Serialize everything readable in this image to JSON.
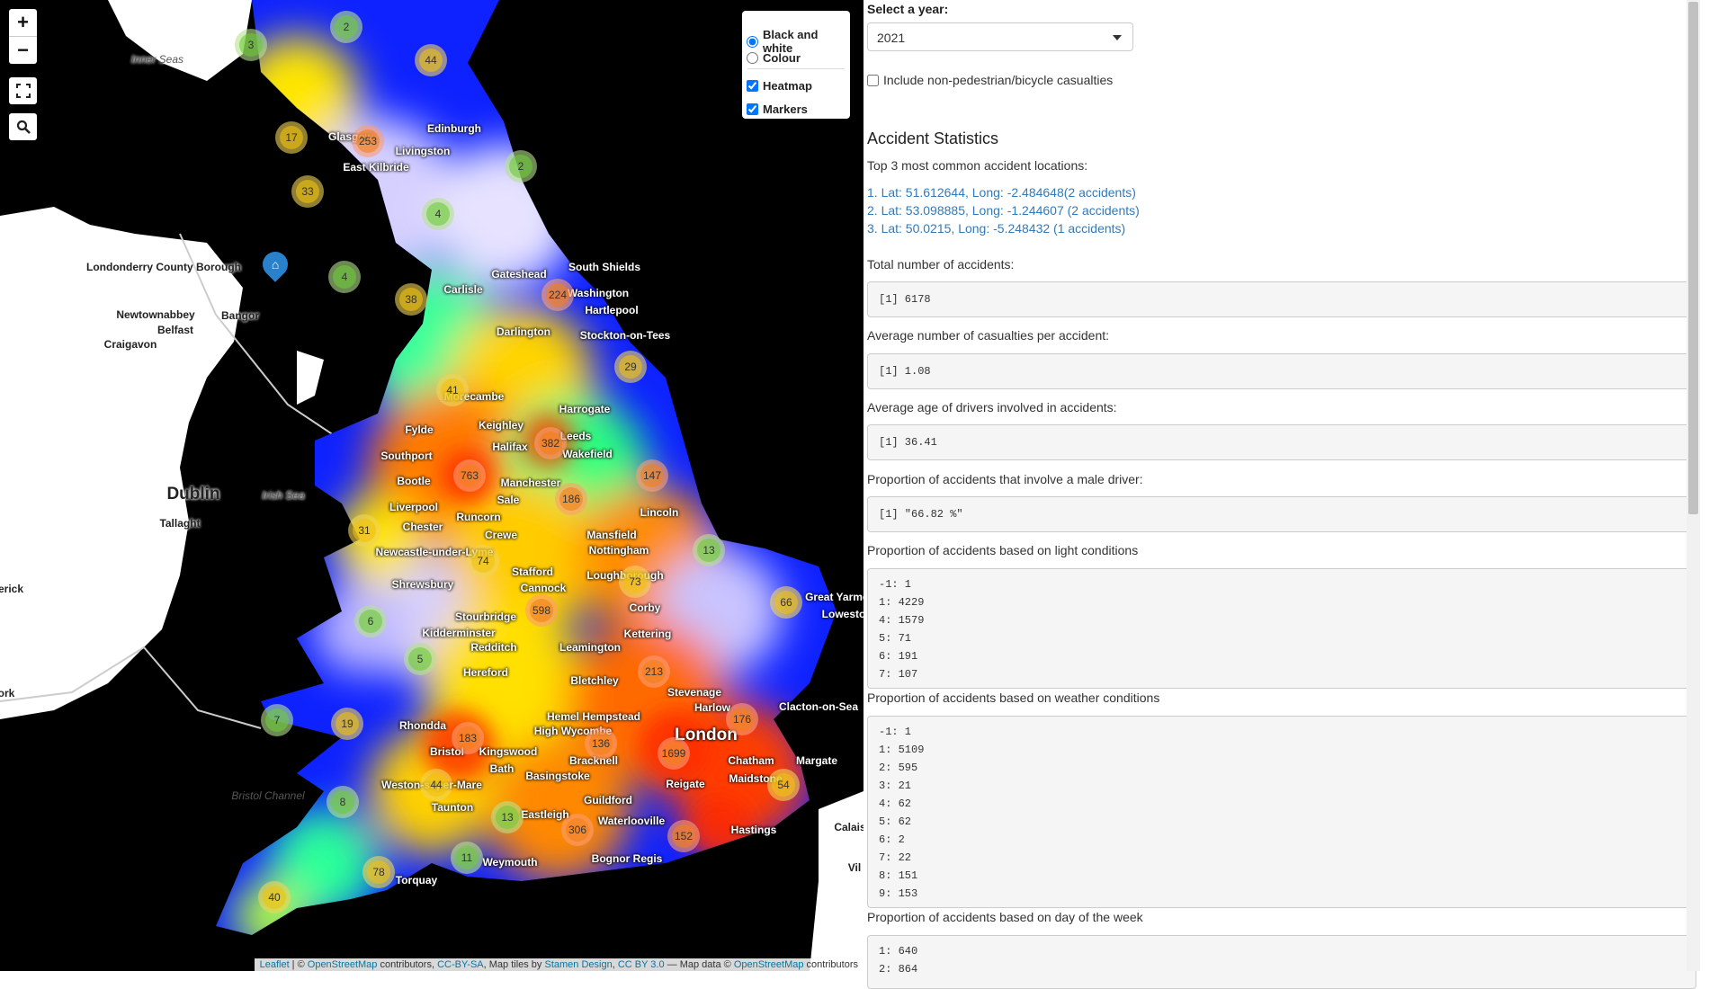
{
  "map": {
    "zoom_in": "+",
    "zoom_out": "−",
    "layers": {
      "bw": "Black and white",
      "colour": "Colour",
      "heatmap": "Heatmap",
      "markers": "Markers"
    },
    "attribution": {
      "leaflet": "Leaflet",
      "sep1": " | © ",
      "osm1": "OpenStreetMap",
      "t1": " contributors, ",
      "ccbysa": "CC-BY-SA",
      "t2": ", Map tiles by ",
      "stamen": "Stamen Design",
      "t3": ", ",
      "ccby": "CC BY 3.0",
      "t4": " — Map data © ",
      "osm2": "OpenStreetMap",
      "t5": " contributors"
    },
    "clusters": [
      "2",
      "3",
      "44",
      "17",
      "253",
      "33",
      "2",
      "4",
      "4",
      "38",
      "224",
      "29",
      "41",
      "382",
      "147",
      "763",
      "186",
      "31",
      "74",
      "13",
      "73",
      "66",
      "6",
      "598",
      "5",
      "213",
      "7",
      "19",
      "183",
      "136",
      "1699",
      "176",
      "44",
      "8",
      "54",
      "13",
      "306",
      "152",
      "11",
      "78",
      "40"
    ],
    "places": [
      "Inner Seas",
      "Edinburgh",
      "Glasgow",
      "Livingston",
      "East Kilbride",
      "Londonderry County Borough",
      "Newtownabbey",
      "Bangor",
      "Belfast",
      "Craigavon",
      "Carlisle",
      "Gateshead",
      "South Shields",
      "Washington",
      "Hartlepool",
      "Darlington",
      "Stockton-on-Tees",
      "Morecambe",
      "Harrogate",
      "Keighley",
      "Halifax",
      "Leeds",
      "Wakefield",
      "Fylde",
      "Southport",
      "Bootle",
      "Manchester",
      "Sale",
      "Liverpool",
      "Runcorn",
      "Chester",
      "Crewe",
      "Newcastle-under-Lyme",
      "Mansfield",
      "Nottingham",
      "Lincoln",
      "Stafford",
      "Cannock",
      "Shrewsbury",
      "Loughborough",
      "Corby",
      "Kettering",
      "Stourbridge",
      "Kidderminster",
      "Redditch",
      "Hereford",
      "Leamington",
      "Bletchley",
      "Stevenage",
      "Harlow",
      "Clacton-on-Sea",
      "Great Yarmouth",
      "Lowestoft",
      "Rhondda",
      "Bristol",
      "Kingswood",
      "Bath",
      "Hemel Hempstead",
      "High Wycombe",
      "Bracknell",
      "London",
      "Chatham",
      "Margate",
      "Basingstoke",
      "Reigate",
      "Maidstone",
      "Weston-super-Mare",
      "Taunton",
      "Eastleigh",
      "Guildford",
      "Waterlooville",
      "Bognor Regis",
      "Hastings",
      "Weymouth",
      "Torquay",
      "Dublin",
      "Irish Sea",
      "Tallaght",
      "Bristol Channel",
      "Calais",
      "erick",
      "ork",
      "Vil"
    ]
  },
  "panel": {
    "year_label": "Select a year:",
    "year_value": "2021",
    "include_label": "Include non-pedestrian/bicycle casualties",
    "title": "Accident Statistics",
    "top3_label": "Top 3 most common accident locations:",
    "top3": [
      "1. Lat: 51.612644, Long: -2.484648(2 accidents)",
      "2. Lat: 53.098885, Long: -1.244607 (2 accidents)",
      "3. Lat: 50.0215, Long: -5.248432 (1 accidents)"
    ],
    "total_label": "Total number of accidents:",
    "total_value": "[1] 6178",
    "avg_cas_label": "Average number of casualties per accident:",
    "avg_cas_value": "[1] 1.08",
    "avg_age_label": "Average age of drivers involved in accidents:",
    "avg_age_value": "[1] 36.41",
    "male_label": "Proportion of accidents that involve a male driver:",
    "male_value": "[1] \"66.82 %\"",
    "light_label": "Proportion of accidents based on light conditions",
    "light_rows": [
      "-1: 1",
      "1: 4229",
      "4: 1579",
      "5: 71",
      "6: 191",
      "7: 107"
    ],
    "weather_label": "Proportion of accidents based on weather conditions",
    "weather_rows": [
      "-1: 1",
      "1: 5109",
      "2: 595",
      "3: 21",
      "4: 62",
      "5: 62",
      "6: 2",
      "7: 22",
      "8: 151",
      "9: 153"
    ],
    "dow_label": "Proportion of accidents based on day of the week",
    "dow_rows": [
      "1: 640",
      "2: 864"
    ]
  }
}
